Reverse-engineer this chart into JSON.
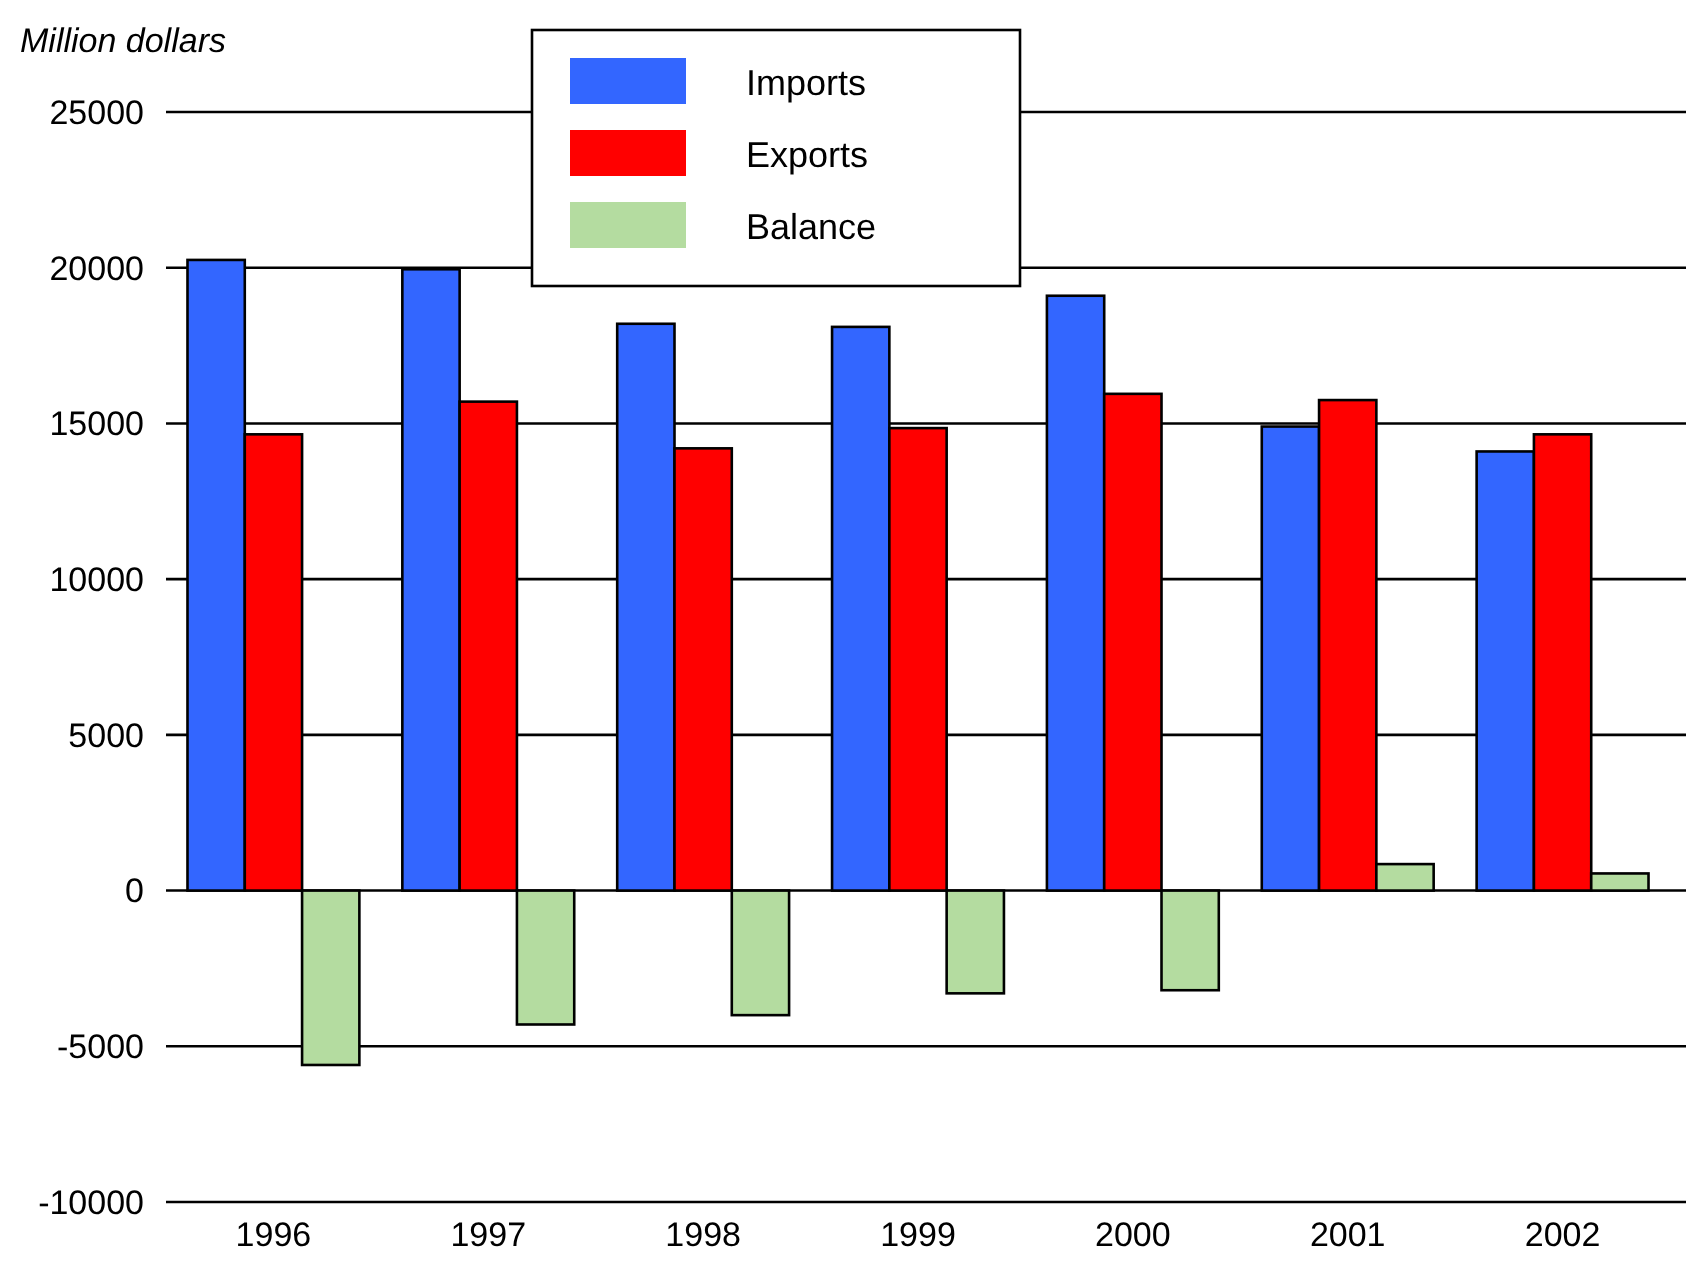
{
  "chart_data": {
    "type": "bar",
    "ylabel": "Million dollars",
    "categories": [
      "1996",
      "1997",
      "1998",
      "1999",
      "2000",
      "2001",
      "2002"
    ],
    "series": [
      {
        "name": "Imports",
        "color": "#3366ff",
        "values": [
          20250,
          19950,
          18200,
          18100,
          19100,
          14900,
          14100
        ]
      },
      {
        "name": "Exports",
        "color": "#ff0000",
        "values": [
          14650,
          15700,
          14200,
          14850,
          15950,
          15750,
          14650
        ]
      },
      {
        "name": "Balance",
        "color": "#b4dca0",
        "values": [
          -5600,
          -4300,
          -4000,
          -3300,
          -3200,
          850,
          550
        ]
      }
    ],
    "ylim": [
      -10000,
      25000
    ],
    "yticks": [
      -10000,
      -5000,
      0,
      5000,
      10000,
      15000,
      20000,
      25000
    ],
    "grid": "y",
    "legend": "top"
  }
}
